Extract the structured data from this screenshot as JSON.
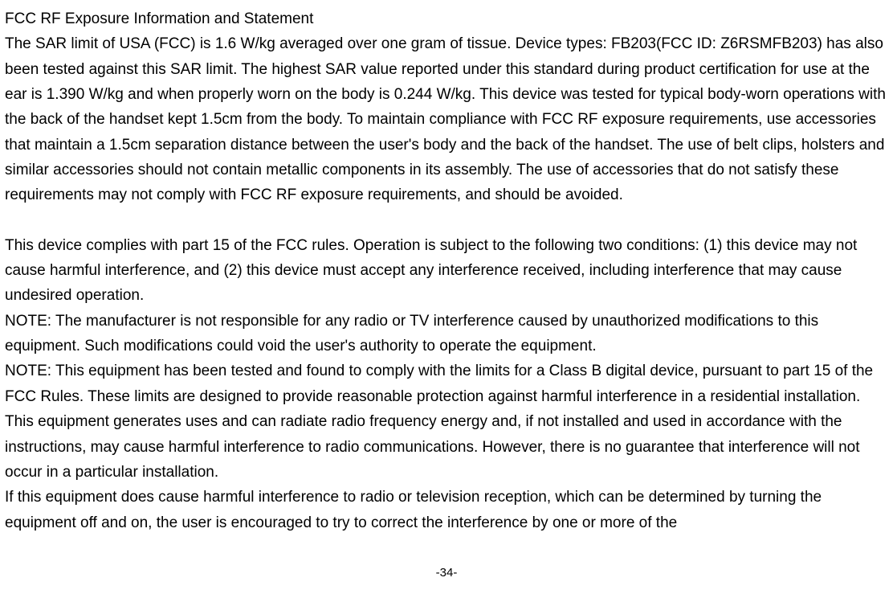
{
  "heading": "FCC RF Exposure Information and Statement",
  "para1": "The SAR limit of USA (FCC) is 1.6 W/kg averaged over one gram of tissue. Device types: FB203(FCC ID: Z6RSMFB203) has also been tested against this SAR limit. The highest SAR value reported under this standard during product certification for use at the ear is 1.390 W/kg and when properly worn on the body is 0.244 W/kg. This device was tested for typical body-worn operations with the back of the handset kept 1.5cm from the body. To maintain compliance with FCC RF exposure requirements, use accessories that maintain a 1.5cm separation distance between the user's body and the back of the handset. The use of belt clips, holsters and similar accessories should not contain metallic components in its assembly. The use of accessories that do not satisfy these requirements may not comply with FCC RF exposure requirements, and should be avoided.",
  "para2": "This device complies with part 15 of the FCC rules. Operation is subject to the following two conditions: (1) this device may not cause harmful interference, and (2) this device must accept any interference received, including interference that may cause undesired operation.",
  "para3": "NOTE: The manufacturer is not responsible for any radio or TV interference caused by unauthorized modifications to this equipment. Such modifications could void the user's authority to operate the equipment.",
  "para4": "NOTE: This equipment has been tested and found to comply with the limits for a Class B digital device, pursuant to part 15 of the FCC Rules. These limits are designed to provide reasonable protection against harmful interference in a residential installation. This equipment generates uses and can radiate radio frequency energy and, if not installed and used in accordance with the instructions, may cause harmful interference to radio communications. However, there is no guarantee that interference will not occur in a particular installation.",
  "para5": "If this equipment does cause harmful interference to radio or television reception, which can be determined by turning the equipment off and on, the user is encouraged to try to correct the interference by one or more of the",
  "page_number": "-34-"
}
